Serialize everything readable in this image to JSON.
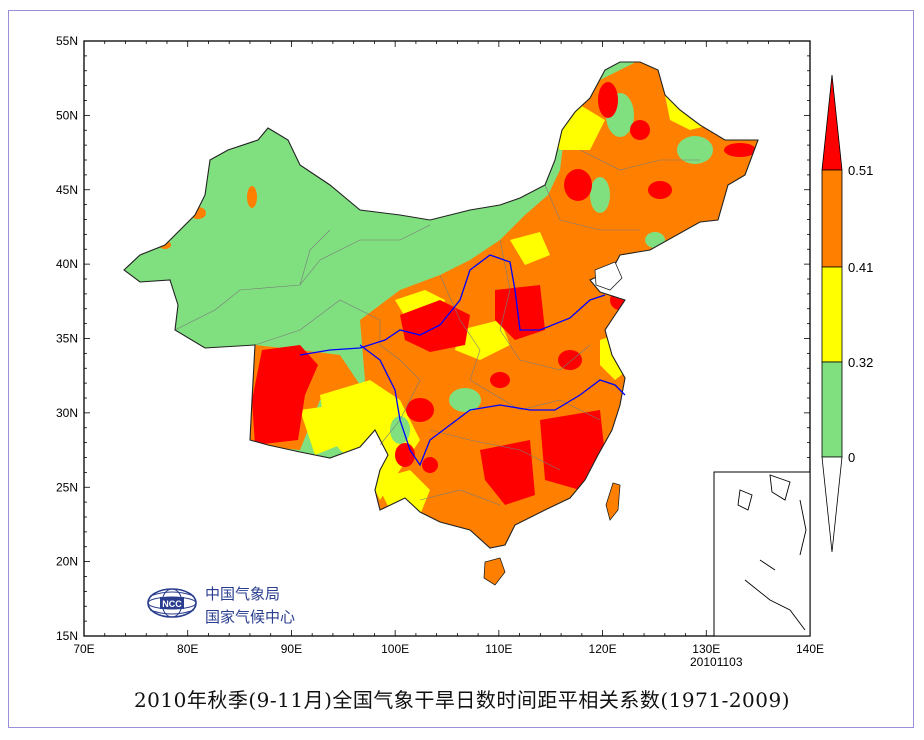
{
  "title": "2010年秋季(9-11月)全国气象干旱日数时间距平相关系数(1971-2009)",
  "date_stamp": "20101103",
  "organization": {
    "line1": "中国气象局",
    "line2": "国家气候中心",
    "logo_text": "NCC"
  },
  "axes": {
    "x_ticks": [
      "70E",
      "80E",
      "90E",
      "100E",
      "110E",
      "120E",
      "130E",
      "140E"
    ],
    "y_ticks": [
      "55N",
      "50N",
      "45N",
      "40N",
      "35N",
      "30N",
      "25N",
      "20N",
      "15N"
    ],
    "lon_range": [
      70,
      140
    ],
    "lat_range": [
      15,
      55
    ]
  },
  "legend": {
    "labels": [
      "0.51",
      "0.41",
      "0.32",
      "0"
    ],
    "colors": {
      "high": "#ff0000",
      "mid_high": "#ff8000",
      "mid": "#ffff00",
      "low": "#80e080",
      "none": "#ffffff"
    }
  },
  "colors": {
    "red": "#ff0000",
    "orange": "#ff8000",
    "yellow": "#ffff00",
    "green": "#80e080",
    "river": "#0000ff"
  }
}
